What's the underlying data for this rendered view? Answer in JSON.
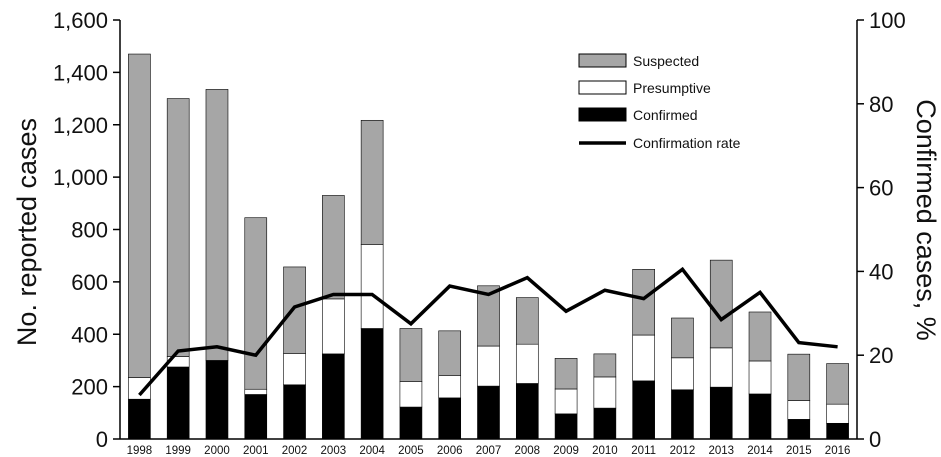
{
  "chart_data": {
    "type": "bar",
    "stacked": true,
    "categories": [
      "1998",
      "1999",
      "2000",
      "2001",
      "2002",
      "2003",
      "2004",
      "2005",
      "2006",
      "2007",
      "2008",
      "2009",
      "2010",
      "2011",
      "2012",
      "2013",
      "2014",
      "2015",
      "2016"
    ],
    "series": [
      {
        "name": "Confirmed",
        "axis": "left",
        "color": "#000000",
        "values": [
          152,
          275,
          300,
          170,
          207,
          325,
          422,
          122,
          157,
          202,
          212,
          96,
          118,
          222,
          188,
          198,
          172,
          75,
          60
        ]
      },
      {
        "name": "Presumptive",
        "axis": "left",
        "color": "#ffffff",
        "values": [
          83,
          40,
          0,
          20,
          120,
          210,
          320,
          98,
          86,
          153,
          150,
          95,
          119,
          175,
          122,
          150,
          126,
          72,
          73
        ]
      },
      {
        "name": "Suspected",
        "axis": "left",
        "color": "#a6a6a6",
        "values": [
          1235,
          985,
          1035,
          655,
          330,
          395,
          475,
          202,
          170,
          230,
          178,
          117,
          88,
          251,
          152,
          335,
          187,
          177,
          155
        ]
      },
      {
        "name": "Confirmation rate",
        "axis": "right",
        "type": "line",
        "color": "#000000",
        "values": [
          10.5,
          21,
          22,
          20,
          31.5,
          34.5,
          34.5,
          27.5,
          36.5,
          34.5,
          38.5,
          30.5,
          35.5,
          33.5,
          40.5,
          28.5,
          35,
          23,
          22
        ]
      }
    ],
    "xlabel": "",
    "ylabel": "No. reported cases",
    "y2label": "Confirmed cases, %",
    "ylim": [
      0,
      1600
    ],
    "y2lim": [
      0,
      100
    ],
    "yticks": [
      "0",
      "200",
      "400",
      "600",
      "800",
      "1,000",
      "1,200",
      "1,400",
      "1,600"
    ],
    "y2ticks": [
      "0",
      "20",
      "40",
      "60",
      "80",
      "100"
    ],
    "grid": false,
    "legend_position": "top-right",
    "legend": [
      "Suspected",
      "Presumptive",
      "Confirmed",
      "Confirmation rate"
    ]
  }
}
